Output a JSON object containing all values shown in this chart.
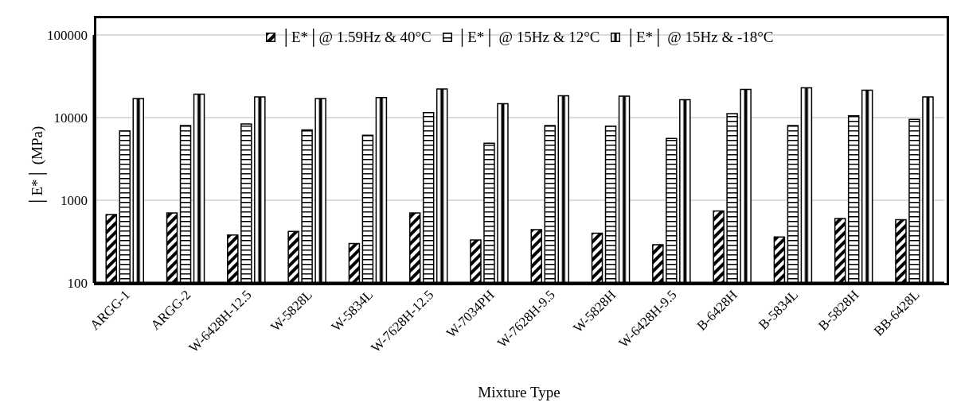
{
  "chart_data": {
    "type": "bar",
    "xlabel": "Mixture Type",
    "ylabel": "│E*│ (MPa)",
    "categories": [
      "ARGG-1",
      "ARGG-2",
      "W-6428H-12.5",
      "W-5828L",
      "W-5834L",
      "W-7628H-12.5",
      "W-7034PH",
      "W-7628H-9.5",
      "W-5828H",
      "W-6428H-9.5",
      "B-6428H",
      "B-5834L",
      "B-5828H",
      "BB-6428L"
    ],
    "series": [
      {
        "name": "│E*│@ 1.59Hz & 40°C",
        "color": "#000000",
        "values": [
          670,
          700,
          380,
          420,
          300,
          700,
          330,
          440,
          400,
          290,
          740,
          360,
          600,
          580
        ]
      },
      {
        "name": "│E*│ @ 15Hz & 12°C",
        "color": "#000000",
        "values": [
          6900,
          8000,
          8400,
          7100,
          6100,
          11500,
          4900,
          8000,
          7900,
          5600,
          11200,
          8000,
          10500,
          9500
        ]
      },
      {
        "name": "│E*│ @ 15Hz & -18°C",
        "color": "#000000",
        "values": [
          17000,
          19200,
          17800,
          17000,
          17500,
          22200,
          14700,
          18400,
          18200,
          16500,
          22000,
          23000,
          21500,
          17800
        ]
      }
    ],
    "log": true,
    "ylim": [
      100,
      100000
    ],
    "yticks": [
      100,
      1000,
      10000,
      100000
    ],
    "grid": "y",
    "legend": "top"
  }
}
